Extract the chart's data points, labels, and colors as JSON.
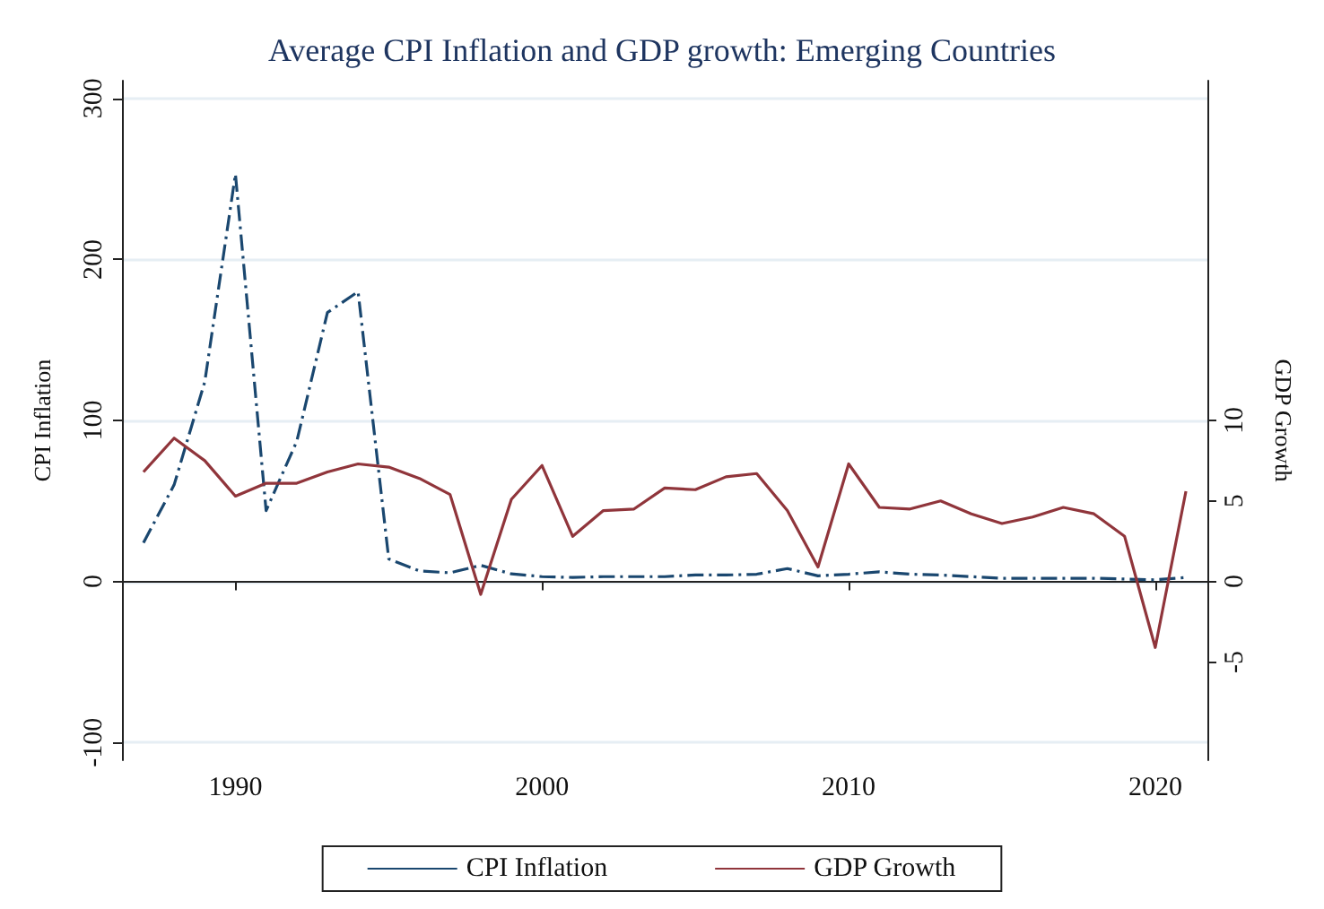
{
  "chart_data": {
    "type": "line",
    "title": "Average CPI Inflation and GDP growth: Emerging Countries",
    "ylabel": "CPI Inflation",
    "y2label": "GDP Growth",
    "x": [
      1987,
      1988,
      1989,
      1990,
      1991,
      1992,
      1993,
      1994,
      1995,
      1996,
      1997,
      1998,
      1999,
      2000,
      2001,
      2002,
      2003,
      2004,
      2005,
      2006,
      2007,
      2008,
      2009,
      2010,
      2011,
      2012,
      2013,
      2014,
      2015,
      2016,
      2017,
      2018,
      2019,
      2020,
      2021
    ],
    "series": [
      {
        "name": "CPI Inflation",
        "color": "#1a476f",
        "line_style": "dashed",
        "values": [
          24,
          60,
          124,
          253,
          44,
          87,
          167,
          180,
          14,
          6.5,
          5.4,
          10,
          4.7,
          3,
          2.5,
          3,
          3,
          3,
          4,
          4,
          4.5,
          8,
          3.5,
          4.5,
          6,
          4.5,
          4,
          3,
          2,
          2,
          2,
          2,
          1.5,
          1,
          2.5
        ]
      },
      {
        "name": "GDP Growth",
        "color": "#90353b",
        "line_style": "solid",
        "axis": "y2",
        "values": [
          6.8,
          8.9,
          7.5,
          5.3,
          6.1,
          6.1,
          6.8,
          7.3,
          7.1,
          6.4,
          5.4,
          -0.8,
          5.1,
          7.2,
          2.8,
          4.4,
          4.5,
          5.8,
          5.7,
          6.5,
          6.7,
          4.4,
          0.9,
          7.3,
          4.6,
          4.5,
          5.0,
          4.2,
          3.6,
          4.0,
          4.6,
          4.2,
          2.8,
          -4.1,
          5.6
        ]
      }
    ],
    "xlim": [
      1986.3,
      2021.7
    ],
    "xticks": [
      1990,
      2000,
      2010,
      2020
    ],
    "ylim": [
      -111,
      311
    ],
    "yticks": [
      -100,
      0,
      100,
      200,
      300
    ],
    "y2lim": [
      -11.1,
      31.1
    ],
    "y2ticks": [
      -5,
      0,
      5,
      10
    ],
    "grid": "y",
    "legend": "bottom",
    "marker": "none"
  }
}
